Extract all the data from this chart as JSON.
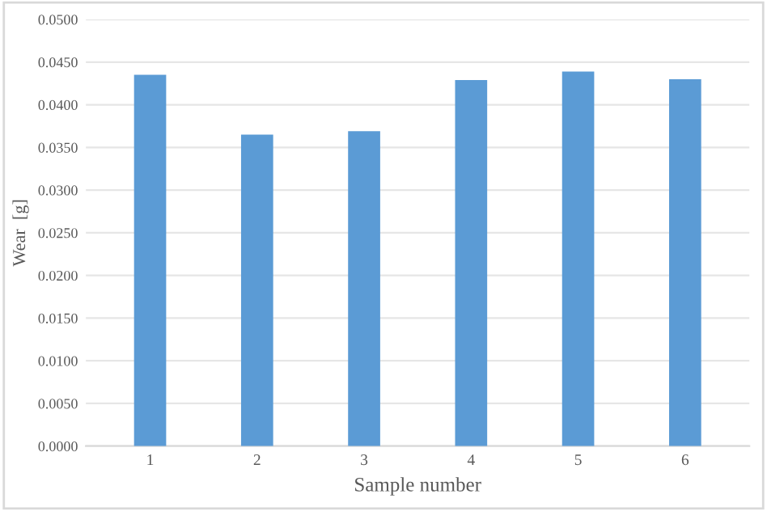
{
  "chart_data": {
    "type": "bar",
    "xlabel": "Sample number",
    "ylabel": "Wear  [g]",
    "categories": [
      "1",
      "2",
      "3",
      "4",
      "5",
      "6"
    ],
    "values": [
      0.0435,
      0.0365,
      0.0369,
      0.0429,
      0.0439,
      0.043
    ],
    "color": "#5b9bd5",
    "ylim": [
      0,
      0.05
    ],
    "yticks": [
      {
        "value": 0,
        "label": "0.0000"
      },
      {
        "value": 0.005,
        "label": "0.0050"
      },
      {
        "value": 0.01,
        "label": "0.0100"
      },
      {
        "value": 0.015,
        "label": "0.0150"
      },
      {
        "value": 0.02,
        "label": "0.0200"
      },
      {
        "value": 0.025,
        "label": "0.0250"
      },
      {
        "value": 0.03,
        "label": "0.0300"
      },
      {
        "value": 0.035,
        "label": "0.0350"
      },
      {
        "value": 0.04,
        "label": "0.0400"
      },
      {
        "value": 0.045,
        "label": "0.0450"
      },
      {
        "value": 0.05,
        "label": "0.0500"
      }
    ],
    "grid": "y"
  }
}
